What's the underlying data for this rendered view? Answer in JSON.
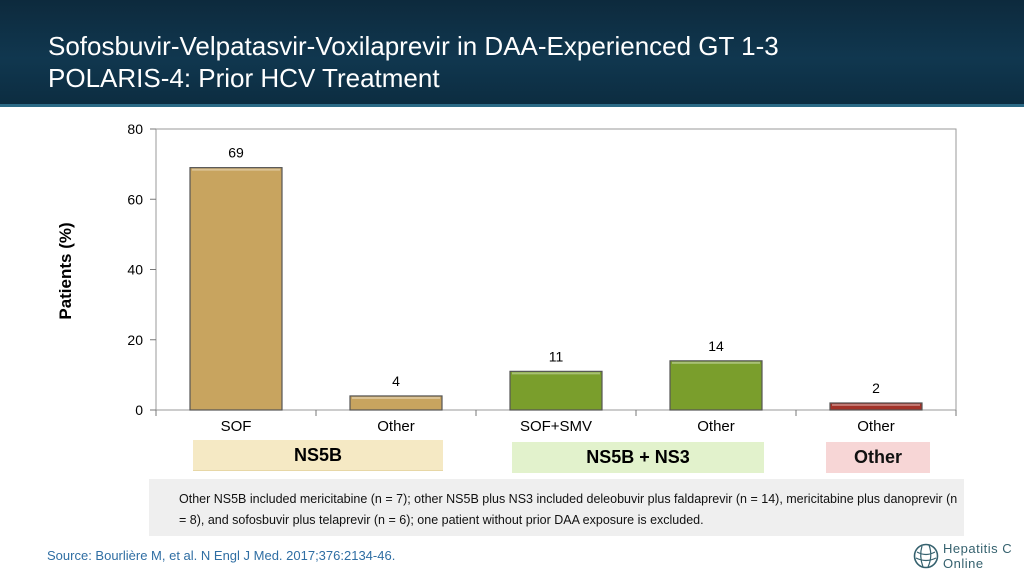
{
  "title": {
    "line1": "Sofosbuvir-Velpatasvir-Voxilaprevir in DAA-Experienced GT 1-3",
    "line2": "POLARIS-4: Prior HCV Treatment"
  },
  "chart_data": {
    "type": "bar",
    "title": "",
    "xlabel": "",
    "ylabel": "Patients (%)",
    "ylim": [
      0,
      80
    ],
    "yticks": [
      0,
      20,
      40,
      60,
      80
    ],
    "grid": false,
    "categories": [
      "SOF",
      "Other",
      "SOF+SMV",
      "Other",
      "Other"
    ],
    "values": [
      69,
      4,
      11,
      14,
      2
    ],
    "data_labels": [
      "69",
      "4",
      "11",
      "14",
      "2"
    ],
    "bar_colors": [
      "#c8a45f",
      "#c8a45f",
      "#7a9e2c",
      "#7a9e2c",
      "#a23228"
    ],
    "groups": [
      {
        "label": "NS5B",
        "categories": [
          0,
          1
        ]
      },
      {
        "label": "NS5B + NS3",
        "categories": [
          2,
          3
        ]
      },
      {
        "label": "Other",
        "categories": [
          4
        ]
      }
    ]
  },
  "groups": {
    "ns5b": "NS5B",
    "ns5b_ns3": "NS5B + NS3",
    "other": "Other"
  },
  "footnote": "Other NS5B included mericitabine (n = 7); other NS5B plus NS3 included deleobuvir plus faldaprevir (n = 14), mericitabine plus danoprevir (n = 8), and sofosbuvir plus telaprevir (n = 6); one patient without prior DAA exposure is excluded.",
  "source": "Source: Bourlière M, et al. N Engl J Med. 2017;376:2134-46.",
  "logo": {
    "line1": "Hepatitis C",
    "line2": "Online"
  },
  "colors": {
    "header": "#10374f",
    "source_text": "#2f6ea3"
  }
}
